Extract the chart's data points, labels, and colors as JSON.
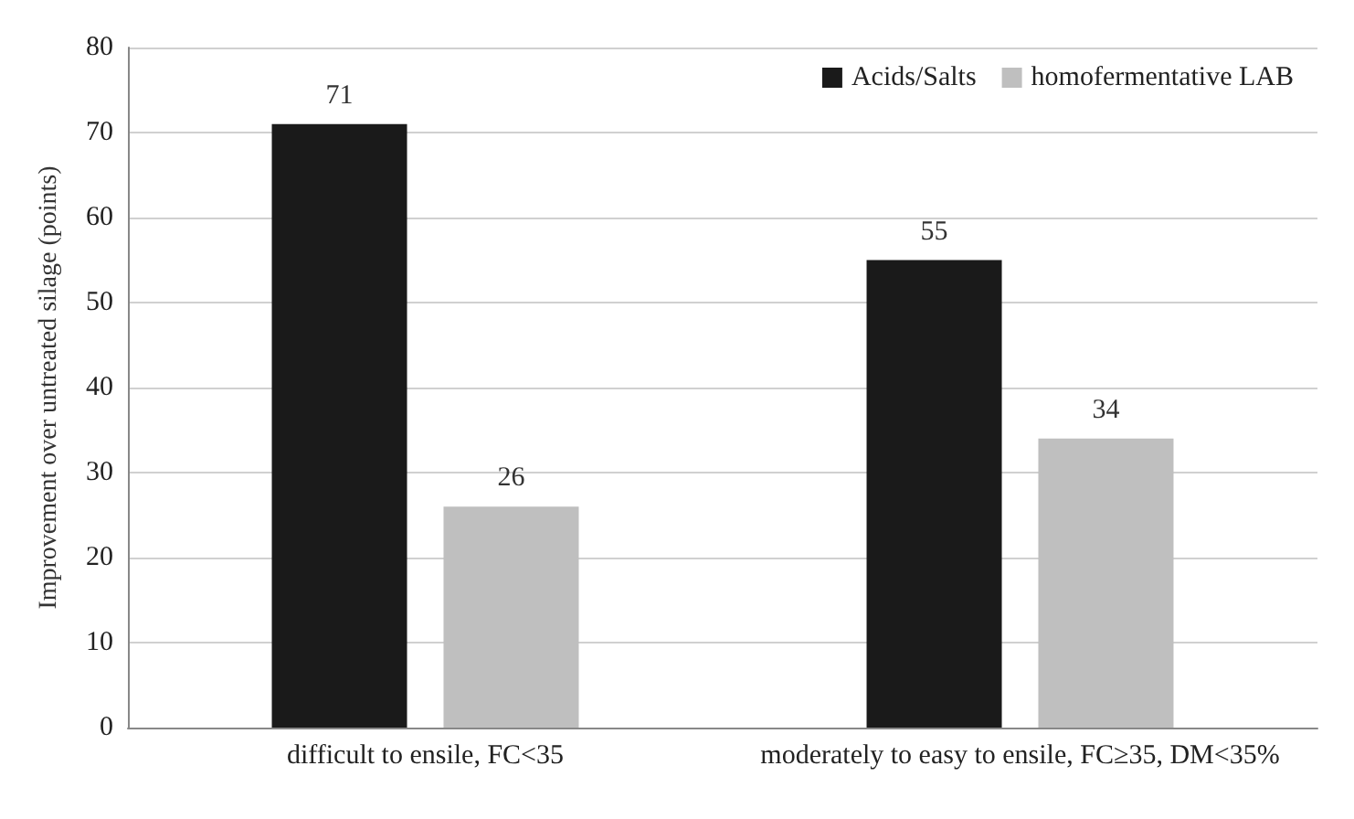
{
  "chart_data": {
    "type": "bar",
    "ylabel": "Improvement over untreated silage (points)",
    "categories": [
      "difficult to ensile, FC<35",
      "moderately to easy to ensile, FC≥35, DM<35%"
    ],
    "series": [
      {
        "name": "Acids/Salts",
        "color": "#1a1a1a",
        "values": [
          71,
          55
        ]
      },
      {
        "name": "homofermentative LAB",
        "color": "#bfbfbf",
        "values": [
          26,
          34
        ]
      }
    ],
    "ylim": [
      0,
      80
    ],
    "yticks": [
      0,
      10,
      20,
      30,
      40,
      50,
      60,
      70,
      80
    ],
    "grid": "y",
    "legend": "top right",
    "data_labels": true
  }
}
